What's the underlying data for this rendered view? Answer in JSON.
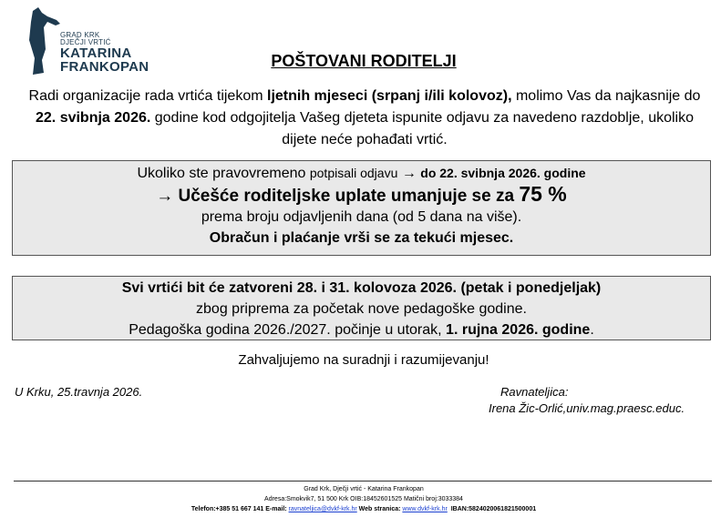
{
  "logo": {
    "line1": "GRAD KRK",
    "line2": "DJEČJI VRTIĆ",
    "line3": "KATARINA",
    "line4": "FRANKOPAN",
    "color": "#1e3a4f"
  },
  "title": "POŠTOVANI RODITELJI",
  "intro": {
    "p1": "Radi organizacije rada vrtića tijekom ",
    "b1": "ljetnih mjeseci (srpanj i/ili kolovoz),",
    "p2": " molimo Vas da najkasnije do ",
    "b2": "22. svibnja 2026.",
    "p3": " godine kod odgojitelja Vašeg djeteta ispunite odjavu za navedeno razdoblje, ukoliko dijete neće pohađati vrtić."
  },
  "box1": {
    "l1a": "Ukoliko ste pravovremeno ",
    "l1b": "potpisali odjavu",
    "l1c": " → ",
    "l1d": "do 22. svibnja 2026. godine",
    "l2a": "→ Učešće roditeljske uplate umanjuje se za ",
    "l2b": "75 %",
    "l3": "prema broju odjavljenih dana (od 5 dana na više).",
    "l4": "Obračun i plaćanje vrši se za tekući mjesec."
  },
  "box2": {
    "l1": "Svi vrtići bit će zatvoreni 28. i 31. kolovoza 2026. (petak i ponedjeljak)",
    "l2": "zbog priprema za početak nove pedagoške godine.",
    "l3a": "Pedagoška godina 2026./2027. počinje u utorak, ",
    "l3b": "1. rujna 2026. godine",
    "l3c": "."
  },
  "thanks": "Zahvaljujemo na suradnji i razumijevanju!",
  "date": "U Krku, 25.travnja 2026.",
  "signature": {
    "role": "Ravnateljica:",
    "name": "Irena Žic-Orlić,univ.mag.praesc.educ."
  },
  "footer": {
    "l1": "Grad Krk, Dječji vrtić - Katarina Frankopan",
    "l2": "Adresa:Smokvik7, 51 500 Krk OIB:18452601525 Matični broj:3033384",
    "tel": "Telefon:+385 51 667 141 E-mail: ",
    "email": "ravnateljica@dvkf-krk.hr",
    "web_label": " Web stranica: ",
    "web": "www.dvkf-krk.hr",
    "iban": "  IBAN:5824020061821500001"
  }
}
